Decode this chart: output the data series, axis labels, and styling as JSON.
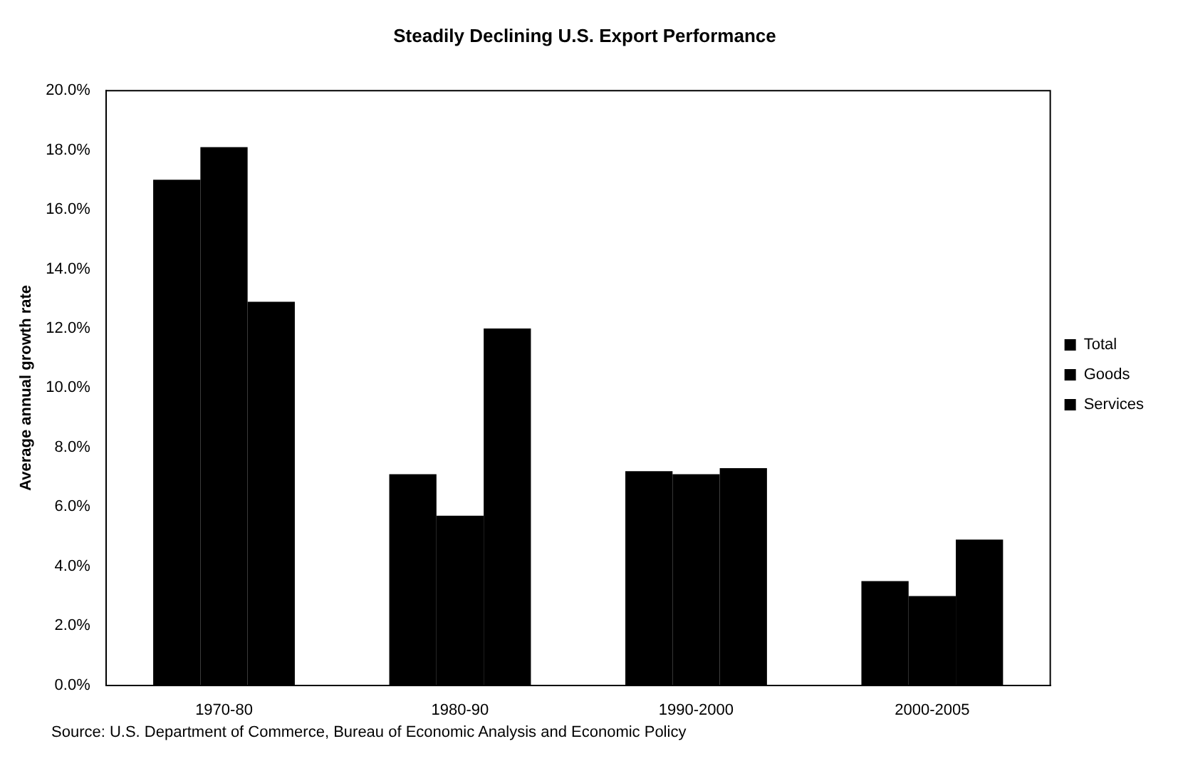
{
  "chart_data": {
    "type": "bar",
    "title": "Steadily Declining U.S. Export Performance",
    "ylabel": "Average annual growth rate",
    "categories": [
      "1970-80",
      "1980-90",
      "1990-2000",
      "2000-2005"
    ],
    "series": [
      {
        "name": "Total",
        "color": "#000000",
        "values": [
          17.0,
          7.1,
          7.2,
          3.5
        ]
      },
      {
        "name": "Goods",
        "color": "#000000",
        "values": [
          18.1,
          5.7,
          7.1,
          3.0
        ]
      },
      {
        "name": "Services",
        "color": "#000000",
        "values": [
          12.9,
          12.0,
          7.3,
          4.9
        ]
      }
    ],
    "ylim": [
      0,
      20
    ],
    "yticks": [
      {
        "value": 0,
        "label": "0.0%"
      },
      {
        "value": 2,
        "label": "2.0%"
      },
      {
        "value": 4,
        "label": "4.0%"
      },
      {
        "value": 6,
        "label": "6.0%"
      },
      {
        "value": 8,
        "label": "8.0%"
      },
      {
        "value": 10,
        "label": "10.0%"
      },
      {
        "value": 12,
        "label": "12.0%"
      },
      {
        "value": 14,
        "label": "14.0%"
      },
      {
        "value": 16,
        "label": "16.0%"
      },
      {
        "value": 18,
        "label": "18.0%"
      },
      {
        "value": 20,
        "label": "20.0%"
      }
    ],
    "grid": false,
    "legend": "right",
    "annotations": [
      "Source:  U.S. Department of Commerce, Bureau of Economic Analysis and Economic Policy"
    ]
  }
}
